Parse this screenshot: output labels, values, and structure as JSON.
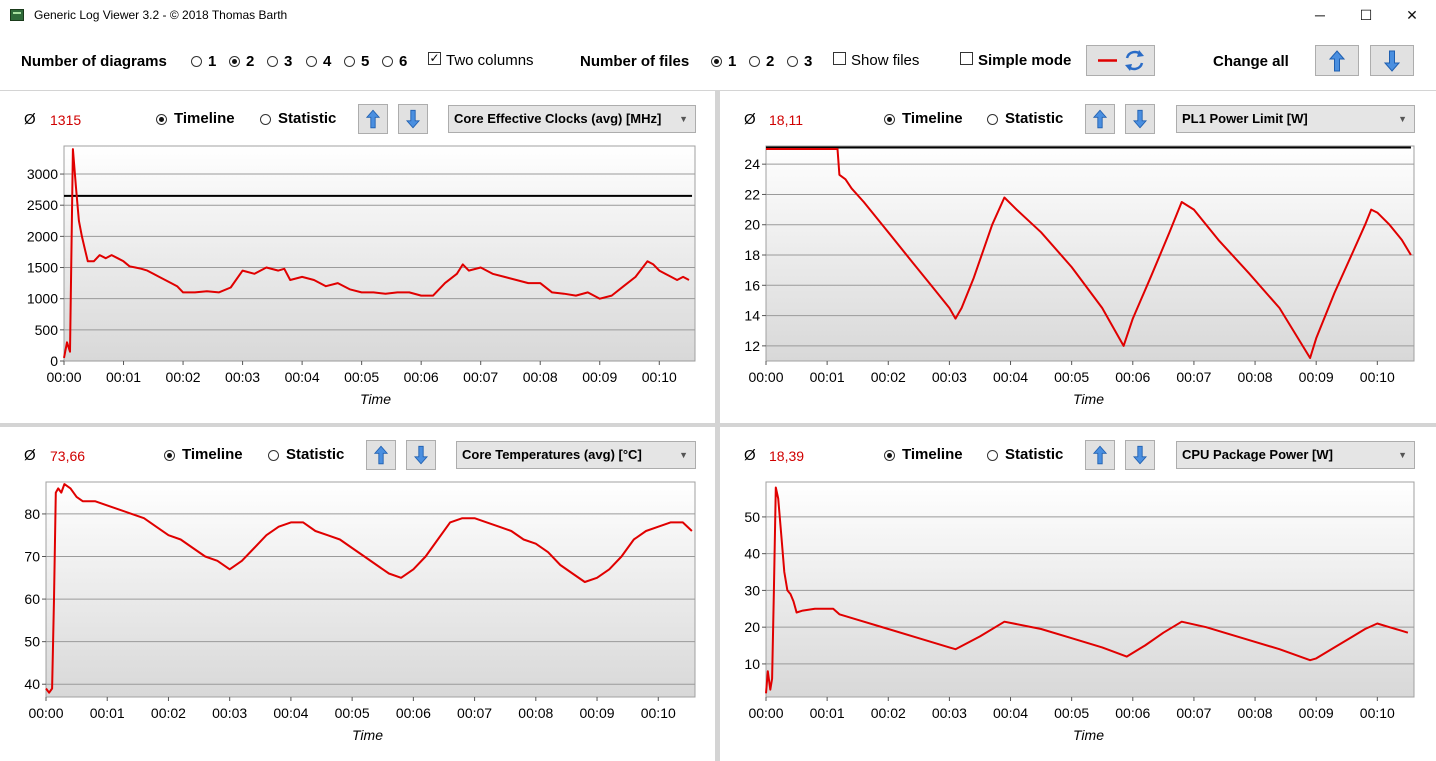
{
  "window": {
    "title": "Generic Log Viewer 3.2 - © 2018 Thomas Barth",
    "minimize": "─",
    "maximize": "☐",
    "close": "✕"
  },
  "toolbar": {
    "num_diagrams_label": "Number of diagrams",
    "diagram_options": [
      "1",
      "2",
      "3",
      "4",
      "5",
      "6"
    ],
    "diagram_selected": "2",
    "two_columns_label": "Two columns",
    "two_columns_checked": true,
    "num_files_label": "Number of files",
    "file_options": [
      "1",
      "2",
      "3"
    ],
    "file_selected": "1",
    "show_files_label": "Show files",
    "simple_mode_label": "Simple mode",
    "change_all_label": "Change all"
  },
  "panels": [
    {
      "avg_symbol": "Ø",
      "avg_value": "1315",
      "timeline_label": "Timeline",
      "statistic_label": "Statistic",
      "sensor": "Core Effective Clocks (avg) [MHz]",
      "x_label": "Time"
    },
    {
      "avg_symbol": "Ø",
      "avg_value": "18,11",
      "timeline_label": "Timeline",
      "statistic_label": "Statistic",
      "sensor": "PL1 Power Limit [W]",
      "x_label": "Time"
    },
    {
      "avg_symbol": "Ø",
      "avg_value": "73,66",
      "timeline_label": "Timeline",
      "statistic_label": "Statistic",
      "sensor": "Core Temperatures (avg) [°C]",
      "x_label": "Time"
    },
    {
      "avg_symbol": "Ø",
      "avg_value": "18,39",
      "timeline_label": "Timeline",
      "statistic_label": "Statistic",
      "sensor": "CPU Package Power [W]",
      "x_label": "Time"
    }
  ],
  "colors": {
    "series": "#e00000",
    "reference": "#000000",
    "avg": "#d00000",
    "button_face": "#e1e1e1"
  },
  "chart_data": [
    {
      "type": "line",
      "xlabel": "Time",
      "x_ticks": [
        "00:00",
        "00:01",
        "00:02",
        "00:03",
        "00:04",
        "00:05",
        "00:06",
        "00:07",
        "00:08",
        "00:09",
        "00:10"
      ],
      "xlim": [
        0,
        10.6
      ],
      "ylim": [
        0,
        3450
      ],
      "y_ticks": [
        0,
        500,
        1000,
        1500,
        2000,
        2500,
        3000
      ],
      "grid": true,
      "reference_line": {
        "y": 2650,
        "x_range": [
          0,
          10.55
        ]
      },
      "series": [
        {
          "x": [
            0,
            0.05,
            0.1,
            0.15,
            0.2,
            0.25,
            0.3,
            0.35,
            0.4,
            0.5,
            0.6,
            0.7,
            0.8,
            0.9,
            1.0,
            1.1,
            1.2,
            1.3,
            1.4,
            1.5,
            1.6,
            1.7,
            1.8,
            1.9,
            2.0,
            2.2,
            2.4,
            2.6,
            2.8,
            3.0,
            3.2,
            3.4,
            3.6,
            3.7,
            3.8,
            4.0,
            4.2,
            4.4,
            4.6,
            4.8,
            5.0,
            5.2,
            5.4,
            5.6,
            5.8,
            6.0,
            6.2,
            6.4,
            6.6,
            6.7,
            6.8,
            7.0,
            7.2,
            7.4,
            7.6,
            7.8,
            8.0,
            8.2,
            8.4,
            8.6,
            8.8,
            9.0,
            9.2,
            9.4,
            9.6,
            9.8,
            9.9,
            10.0,
            10.1,
            10.2,
            10.3,
            10.4,
            10.5
          ],
          "y": [
            50,
            300,
            150,
            3400,
            2800,
            2250,
            2000,
            1800,
            1600,
            1600,
            1700,
            1650,
            1700,
            1650,
            1600,
            1520,
            1500,
            1480,
            1450,
            1400,
            1350,
            1300,
            1250,
            1200,
            1100,
            1100,
            1120,
            1100,
            1180,
            1450,
            1400,
            1500,
            1450,
            1480,
            1300,
            1350,
            1300,
            1200,
            1250,
            1150,
            1100,
            1100,
            1080,
            1100,
            1100,
            1050,
            1050,
            1250,
            1400,
            1550,
            1450,
            1500,
            1400,
            1350,
            1300,
            1250,
            1250,
            1100,
            1080,
            1050,
            1100,
            1000,
            1050,
            1200,
            1350,
            1600,
            1550,
            1450,
            1400,
            1350,
            1300,
            1350,
            1300
          ]
        }
      ]
    },
    {
      "type": "line",
      "xlabel": "Time",
      "x_ticks": [
        "00:00",
        "00:01",
        "00:02",
        "00:03",
        "00:04",
        "00:05",
        "00:06",
        "00:07",
        "00:08",
        "00:09",
        "00:10"
      ],
      "xlim": [
        0,
        10.6
      ],
      "ylim": [
        11,
        25.2
      ],
      "y_ticks": [
        12,
        14,
        16,
        18,
        20,
        22,
        24
      ],
      "grid": true,
      "reference_line": {
        "y": 25.1,
        "x_range": [
          0,
          10.55
        ]
      },
      "series": [
        {
          "x": [
            0,
            1.17,
            1.2,
            1.3,
            1.4,
            1.6,
            1.9,
            2.4,
            2.7,
            3.0,
            3.1,
            3.2,
            3.4,
            3.7,
            3.9,
            4.1,
            4.5,
            5.0,
            5.5,
            5.85,
            6.0,
            6.3,
            6.6,
            6.8,
            7.0,
            7.4,
            7.9,
            8.4,
            8.9,
            9.0,
            9.3,
            9.6,
            9.8,
            9.9,
            10.0,
            10.2,
            10.4,
            10.55
          ],
          "y": [
            25,
            25,
            23.3,
            23,
            22.4,
            21.5,
            20,
            17.5,
            16,
            14.5,
            13.8,
            14.5,
            16.5,
            20,
            21.8,
            21,
            19.5,
            17.2,
            14.5,
            12,
            13.8,
            16.6,
            19.5,
            21.5,
            21,
            19,
            16.8,
            14.5,
            11.2,
            12.5,
            15.5,
            18.2,
            20,
            21,
            20.8,
            20,
            19,
            18
          ]
        }
      ]
    },
    {
      "type": "line",
      "xlabel": "Time",
      "x_ticks": [
        "00:00",
        "00:01",
        "00:02",
        "00:03",
        "00:04",
        "00:05",
        "00:06",
        "00:07",
        "00:08",
        "00:09",
        "00:10"
      ],
      "xlim": [
        0,
        10.6
      ],
      "ylim": [
        37,
        87.5
      ],
      "y_ticks": [
        40,
        50,
        60,
        70,
        80
      ],
      "grid": true,
      "series": [
        {
          "x": [
            0,
            0.05,
            0.1,
            0.13,
            0.16,
            0.2,
            0.25,
            0.3,
            0.4,
            0.5,
            0.6,
            0.8,
            1.0,
            1.2,
            1.4,
            1.6,
            1.8,
            2.0,
            2.2,
            2.4,
            2.6,
            2.8,
            3.0,
            3.2,
            3.4,
            3.6,
            3.8,
            4.0,
            4.2,
            4.4,
            4.6,
            4.8,
            5.0,
            5.2,
            5.4,
            5.6,
            5.8,
            6.0,
            6.2,
            6.4,
            6.6,
            6.8,
            7.0,
            7.2,
            7.4,
            7.6,
            7.8,
            8.0,
            8.2,
            8.4,
            8.6,
            8.8,
            9.0,
            9.2,
            9.4,
            9.6,
            9.8,
            10.0,
            10.2,
            10.4,
            10.55
          ],
          "y": [
            39,
            38,
            39,
            60,
            85,
            86,
            85,
            87,
            86,
            84,
            83,
            83,
            82,
            81,
            80,
            79,
            77,
            75,
            74,
            72,
            70,
            69,
            67,
            69,
            72,
            75,
            77,
            78,
            78,
            76,
            75,
            74,
            72,
            70,
            68,
            66,
            65,
            67,
            70,
            74,
            78,
            79,
            79,
            78,
            77,
            76,
            74,
            73,
            71,
            68,
            66,
            64,
            65,
            67,
            70,
            74,
            76,
            77,
            78,
            78,
            76
          ]
        }
      ]
    },
    {
      "type": "line",
      "xlabel": "Time",
      "x_ticks": [
        "00:00",
        "00:01",
        "00:02",
        "00:03",
        "00:04",
        "00:05",
        "00:06",
        "00:07",
        "00:08",
        "00:09",
        "00:10"
      ],
      "xlim": [
        0,
        10.6
      ],
      "ylim": [
        1,
        59.5
      ],
      "y_ticks": [
        10,
        20,
        30,
        40,
        50
      ],
      "grid": true,
      "series": [
        {
          "x": [
            0,
            0.03,
            0.07,
            0.1,
            0.13,
            0.16,
            0.2,
            0.25,
            0.3,
            0.35,
            0.4,
            0.45,
            0.5,
            0.6,
            0.8,
            1.0,
            1.1,
            1.2,
            1.5,
            2.0,
            2.5,
            3.0,
            3.1,
            3.5,
            3.9,
            4.5,
            5.0,
            5.5,
            5.9,
            6.2,
            6.5,
            6.8,
            7.2,
            7.8,
            8.4,
            8.9,
            9.0,
            9.3,
            9.6,
            9.8,
            10.0,
            10.2,
            10.4,
            10.5
          ],
          "y": [
            2,
            8,
            3,
            6,
            30,
            58,
            55,
            45,
            35,
            30,
            29,
            27,
            24,
            24.5,
            25,
            25,
            25,
            23.5,
            22,
            19.5,
            17,
            14.5,
            14,
            17.5,
            21.5,
            19.5,
            17,
            14.5,
            12,
            15,
            18.5,
            21.5,
            20,
            17,
            14,
            11,
            11.5,
            14.5,
            17.5,
            19.5,
            21,
            20,
            19,
            18.5
          ]
        }
      ]
    }
  ]
}
